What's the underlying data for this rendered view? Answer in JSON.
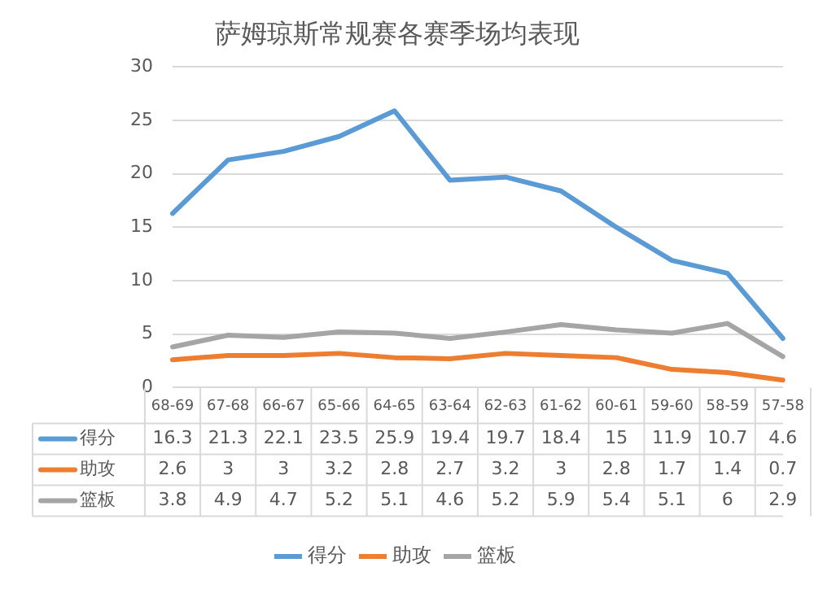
{
  "chart_data": {
    "type": "line",
    "title": "萨姆琼斯常规赛各赛季场均表现",
    "categories": [
      "68-69",
      "67-68",
      "66-67",
      "65-66",
      "64-65",
      "63-64",
      "62-63",
      "61-62",
      "60-61",
      "59-60",
      "58-59",
      "57-58"
    ],
    "series": [
      {
        "name": "得分",
        "color": "#5b9bd5",
        "values": [
          16.3,
          21.3,
          22.1,
          23.5,
          25.9,
          19.4,
          19.7,
          18.4,
          15,
          11.9,
          10.7,
          4.6
        ]
      },
      {
        "name": "助攻",
        "color": "#ed7d31",
        "values": [
          2.6,
          3,
          3,
          3.2,
          2.8,
          2.7,
          3.2,
          3,
          2.8,
          1.7,
          1.4,
          0.7
        ]
      },
      {
        "name": "篮板",
        "color": "#a5a5a5",
        "values": [
          3.8,
          4.9,
          4.7,
          5.2,
          5.1,
          4.6,
          5.2,
          5.9,
          5.4,
          5.1,
          6,
          2.9
        ]
      }
    ],
    "ylim": [
      0,
      30
    ],
    "yticks": [
      0,
      5,
      10,
      15,
      20,
      25,
      30
    ],
    "grid": "y",
    "legend": "bottom",
    "marker": "none",
    "line_style": "solid",
    "data_labels": true
  }
}
